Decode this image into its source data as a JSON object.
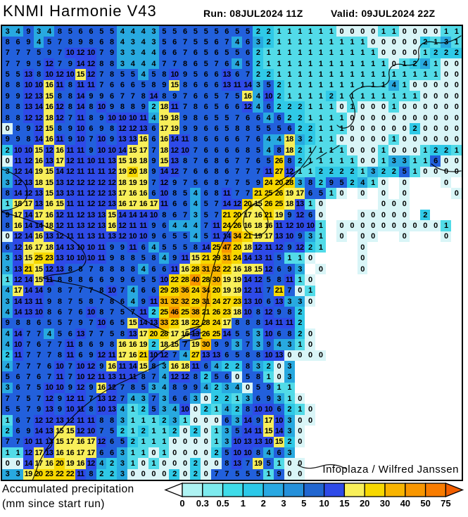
{
  "header": {
    "title": "KNMI Harmonie V43",
    "run_label": "Run: 08JUL2024 11Z",
    "valid_label": "Valid: 09JUL2024 22Z"
  },
  "map": {
    "attribution": "Infoplaza / Wilfred Janssen"
  },
  "legend": {
    "line1": "Accumulated precipitation",
    "line2": "(mm since start run)",
    "ticks": [
      "0",
      "0.3",
      "0.5",
      "1",
      "2",
      "3",
      "5",
      "10",
      "15",
      "20",
      "30",
      "40",
      "50",
      "75"
    ],
    "cell_colors": [
      "#aef2f2",
      "#7deaee",
      "#3fdce9",
      "#2cc8e8",
      "#29a8e2",
      "#2590da",
      "#2166d0",
      "#2e4ae8",
      "#f8ef5a",
      "#f7d800",
      "#f8b400",
      "#f89600",
      "#f87c00"
    ],
    "left_arrow_color": "#ffffff",
    "right_arrow_color": "#f25f00",
    "outline_color": "#000000"
  },
  "chart_data": {
    "type": "heatmap",
    "title": "KNMI Harmonie V43 accumulated precipitation",
    "unit": "mm since start run",
    "cols": 44,
    "rows_count": 42,
    "blank_color": "#ffffff",
    "value_scale": [
      {
        "max": 0,
        "color": "#d9f5f7"
      },
      {
        "max": 1,
        "color": "#52dbe8"
      },
      {
        "max": 2,
        "color": "#2fc9e7"
      },
      {
        "max": 4,
        "color": "#28a9e0"
      },
      {
        "max": 9,
        "color": "#2260dc"
      },
      {
        "max": 14,
        "color": "#2e4ae8"
      },
      {
        "max": 19,
        "color": "#f8ef5a"
      },
      {
        "max": 29,
        "color": "#f7d800"
      },
      {
        "max": 39,
        "color": "#f8b400"
      },
      {
        "max": 49,
        "color": "#f89600"
      },
      {
        "max": 74,
        "color": "#f87c00"
      },
      {
        "max": 999,
        "color": "#f06000"
      }
    ],
    "rows": [
      "3 4 9 3 4 8 5 6 6 5 5 4 4 4 3 5 5 6 5 5 5 6 5 5 2 2 1 1 1 1 1 1 0 0 0 0 1 1 0 0 0 0 1 1",
      "8 6 9 4 5 7 8 9 8 6 8 4 3 4 3 5 6 7 5 5 6 7 4 6 3 2 1 1 1 1 1 1 1 1 1 0 0 0 0 0 2 1 3 1",
      "7 7 7 5 9 7 10 12 10 7 9 3 3 4 4 6 6 7 6 5 6 5 5 6 2 1 1 1 1 1 1 1 1 1 1 1 0 0 0 0 1 2 2 2",
      "7 7 9 5 12 7 9 14 12 8 8 3 4 4 4 7 7 8 6 5 7 6 4 5 2 1 1 1 1 1 1 1 1 1 1 1 1 0 1 2 4 1 0 0",
      "5 5 13 8 10 12 10 15 12 7 8 5 5 4 5 8 10 9 5 6 6 13 6 7 2 2 1 1 1 1 1 1 1 1 1 1 1 1 1 1 1 1 0 0",
      "8 8 10 10 16 11 8 11 11 7 6 6 6 5 8 9 15 8 6 6 6 13 11 14 3 5 2 1 1 1 1 1 1 1 1 1 1 4 1 0 0 0 0 0",
      "9 9 12 13 15 8 8 14 9 9 6 7 7 8 14 8 9 7 6 6 5 7 5 16 4 10 2 1 1 1 1 2 1 1 1 1 1 1 1 1 0 0 0 0",
      "8 8 13 14 16 12 8 14 8 10 9 8 8 9 2 18 11 7 8 6 5 6 6 12 4 6 2 2 2 1 1 1 0 1 0 0 0 1 0 0 0 0 0 0",
      "8 8 12 12 18 12 7 11 8 9 10 10 10 11 4 19 18 9 8 6 5 5 7 6 6 4 6 2 2 1 1 1 1 0 0 0 0 0 0 0 0 0 0 0",
      "0 8 9 12 15 8 9 10 6 9 8 12 12 13 6 17 19 9 9 6 6 5 8 8 5 5 5 6 2 2 1 1 1 0 0 0 0 0 0 2 0 0 0 0",
      "9 9 8 14 16 11 9 10 7 10 9 13 13 16 6 16 14 11 8 6 6 6 6 7 6 4 4 18 3 2 1 1 0 0 0 0 0 1 0 0 0 0 0 0",
      "2 10 10 15 12 16 11 11 9 10 10 14 15 17 7 18 12 10 7 6 6 6 6 8 5 4 8 18 2 1 1 1 1 0 0 0 1 0 0 0 1 2 2 1",
      "0 11 12 16 13 17 12 11 10 11 13 15 18 18 9 15 13 8 7 6 8 6 7 7 6 5 26 8 2 1 1 1 1 1 0 0 1 3 3 1 1 6 0 0",
      "3 12 14 19 15 14 12 11 11 11 12 19 20 18 9 14 12 7 6 6 8 6 7 7 7 11 27 12 1 1 2 2 2 2 1 3 2 2 5 1 0 0 0 0",
      "3 12 13 18 15 13 12 12 12 12 12 18 19 19 7 12 9 7 5 6 8 7 7 5 9 24 20 28 3 8 2 9 5 2 4 1 0 . 0 . . . 0 .",
      "8 14 12 13 15 13 13 11 12 12 13 17 16 16 6 10 8 5 4 6 8 11 7 7 21 25 26 19 17 6 5 1 0 . 0 . 0 . 0 . . . . 0",
      "1 18 17 13 16 15 11 11 12 12 13 16 17 16 17 11 6 6 4 5 7 14 12 20 15 26 25 18 13 1 0 . . . . . 0 0 0 . . . . .",
      "9 17 14 17 16 12 11 12 13 13 15 14 14 14 10 8 6 7 3 5 7 21 20 17 16 21 19 9 12 6 0 . . . 0 0 0 0 0 . 2 . . .",
      "8 16 14 14 18 12 11 13 12 13 16 12 11 11 9 6 4 4 4 7 11 24 26 16 18 16 11 12 10 10 1 . 0 0 0 0 0 0 0 0 0 0 1 .",
      "0 12 14 16 13 12 11 11 13 11 13 12 10 10 9 6 5 5 4 5 11 14 34 21 19 17 13 10 9 3 1 . 0 . 0 0 . . 0 . . . 0 .",
      "6 12 16 17 18 14 13 10 10 11 9 9 11 6 4 5 5 5 8 14 25 47 20 18 12 11 12 9 12 2 1 . . . 0 . . . . . . . . .",
      "3 13 15 25 23 13 10 10 10 11 9 8 8 5 8 4 9 11 15 21 29 31 24 14 13 11 5 1 1 0 . . . . 0 . . . . . . . . .",
      "3 13 21 15 12 13 8 8 7 8 8 8 8 4 6 6 11 16 28 31 32 22 16 18 15 12 6 9 3 . 0 . . . 0 . . . . . . . . .",
      "1 12 14 15 11 8 8 8 6 6 9 9 6 5 5 10 22 28 40 28 30 19 19 14 12 5 8 11 1 0 . . . . . . . . . . . . . .",
      "4 17 14 14 9 8 7 7 7 8 10 7 4 6 6 29 28 36 24 34 20 19 19 12 11 7 21 7 0 1 . . . . . . . . . . . . . .",
      "3 14 13 11 9 8 7 5 8 7 8 6 4 9 11 31 32 32 29 31 24 27 23 13 10 6 13 3 3 0 . . . . . . . . . . . . . .",
      "4 14 13 10 8 6 7 6 10 8 7 5 7 11 2 25 46 25 38 21 26 23 18 10 8 12 9 8 2 . . . . . . . . . . . . . . .",
      "9 8 8 6 5 5 7 9 7 10 6 5 15 14 13 33 23 18 22 28 24 17 8 8 8 14 11 11 2 . . . . . . . . . . . . . . .",
      "4 14 7 7 4 5 6 13 7 7 5 8 13 17 20 28 17 16 13 26 25 14 5 5 3 10 6 8 2 0 . . . . . . . . . . . . . .",
      "4 10 7 6 7 7 11 8 6 9 8 16 16 19 2 18 15 7 19 30 9 9 3 7 3 9 4 3 1 0 . . . . . . . . . . . . . .",
      "2 11 7 7 7 8 11 6 9 12 11 17 16 21 10 12 7 4 27 13 13 6 5 8 8 10 13 0 0 0 0 . . . . . . . . . . . . .",
      "4 7 7 7 6 10 7 10 12 9 16 11 14 15 8 3 16 18 11 6 4 2 2 8 3 2 0 3 . . . . . . . . . . . . . . . .",
      "5 6 7 6 7 11 7 10 12 11 13 11 11 8 7 4 12 12 8 2 5 6 0 5 8 1 0 3 . . . . . . . . . . . . . . . .",
      "3 6 7 5 10 10 9 12 9 16 12 7 8 5 3 4 8 9 9 4 2 3 4 0 5 9 1 1 . . . . . . . . . . . . . . . .",
      "7 7 5 7 12 9 12 11 7 13 12 7 4 3 7 3 6 6 3 0 2 2 1 3 6 9 3 1 0 . . . . . . . . . . . . . . .",
      "5 5 7 9 13 9 10 11 8 10 13 4 1 2 5 3 4 10 0 2 1 4 2 8 10 10 6 2 1 0 . . . . . . . . . . . . . .",
      "1 6 7 12 12 13 12 11 11 8 8 3 1 1 1 2 3 1 0 0 0 6 3 14 9 17 10 3 0 0 . . . . . . . . . . . . . .",
      "2 6 9 14 13 15 15 12 10 7 5 2 1 2 1 1 2 0 2 0 1 3 5 14 11 15 14 3 0 . . . . . . . . . . . . . . .",
      "7 7 10 11 13 15 17 16 17 12 6 5 2 1 1 1 0 0 0 0 1 3 10 13 13 10 15 2 0 . . . . . . . . . . . . . . .",
      "1 1 12 17 13 16 16 17 17 6 6 3 1 1 0 1 0 0 0 0 2 5 10 10 8 4 6 3 . . . . . . . . . . . . . . . .",
      "0 0 14 17 16 20 19 16 12 4 2 3 1 0 1 0 0 0 2 0 0 8 13 7 19 5 1 0 0 . . . . . . . . . . . . . . .",
      "3 3 19 20 23 22 22 11 8 2 2 3 0 0 0 0 2 0 2 0 7 7 5 5 5 1 9 0 0 . . . . . . . . . . . . . . ."
    ]
  }
}
